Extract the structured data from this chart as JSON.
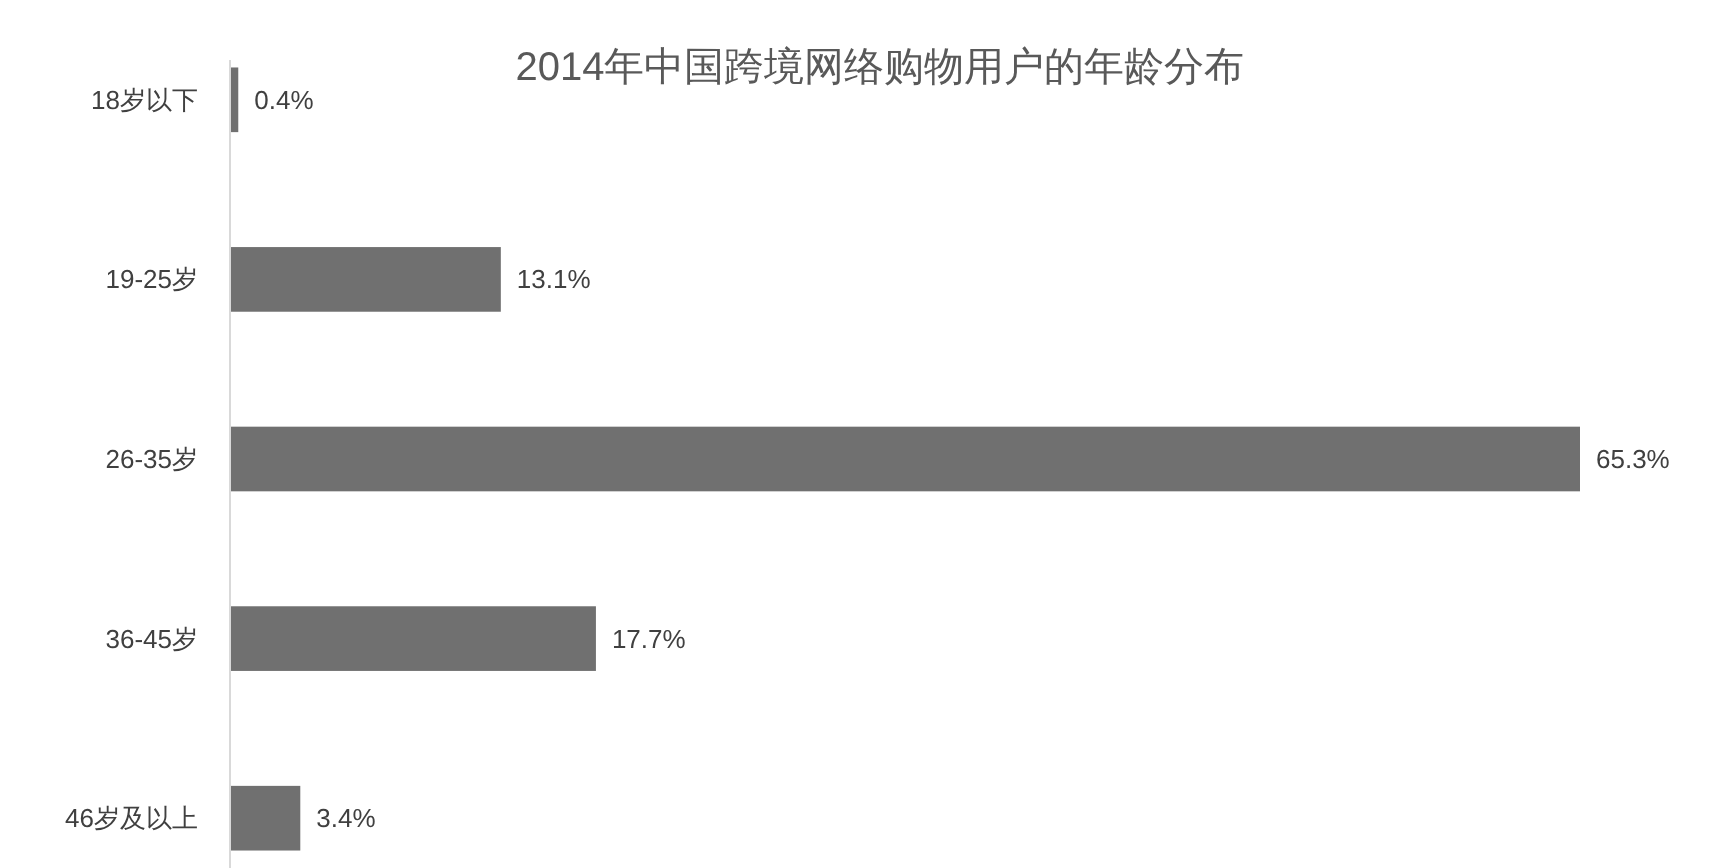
{
  "chart_data": {
    "type": "bar",
    "orientation": "horizontal",
    "title": "2014年中国跨境网络购物用户的年龄分布",
    "categories": [
      "18岁以下",
      "19-25岁",
      "26-35岁",
      "36-45岁",
      "46岁及以上"
    ],
    "values": [
      0.4,
      13.1,
      65.3,
      17.7,
      3.4
    ],
    "color": "#707070",
    "value_labels": [
      "0.4%",
      "13.1%",
      "65.3%",
      "17.7%",
      "3.4%"
    ]
  }
}
